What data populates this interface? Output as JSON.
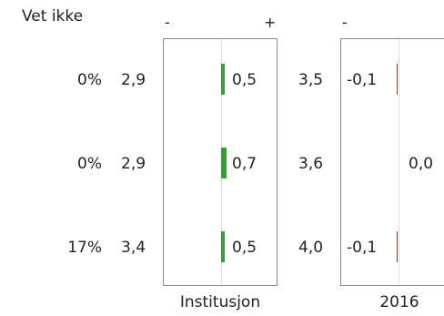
{
  "header": {
    "dont_know_label": "Vet ikke"
  },
  "rows": [
    {
      "dont_know": "0%",
      "score_a": "2,9",
      "score_b": "3,5"
    },
    {
      "dont_know": "0%",
      "score_a": "2,9",
      "score_b": "3,6"
    },
    {
      "dont_know": "17%",
      "score_a": "3,4",
      "score_b": "4,0"
    }
  ],
  "chart_data": [
    {
      "type": "bar",
      "orientation": "horizontal",
      "title": "Institusjon",
      "sign_labels": {
        "minus": "-",
        "plus": "+"
      },
      "categories": [
        "row 1",
        "row 2",
        "row 3"
      ],
      "values": [
        0.5,
        0.7,
        0.5
      ],
      "value_labels": [
        "0,5",
        "0,7",
        "0,5"
      ],
      "color": "#3a9a3a"
    },
    {
      "type": "bar",
      "orientation": "horizontal",
      "title": "2016",
      "sign_labels": {
        "minus": "-",
        "plus": ""
      },
      "categories": [
        "row 1",
        "row 2",
        "row 3"
      ],
      "values": [
        -0.1,
        0.0,
        -0.1
      ],
      "value_labels": [
        "-0,1",
        "0,0",
        "-0,1"
      ],
      "color": "#b02030"
    }
  ]
}
